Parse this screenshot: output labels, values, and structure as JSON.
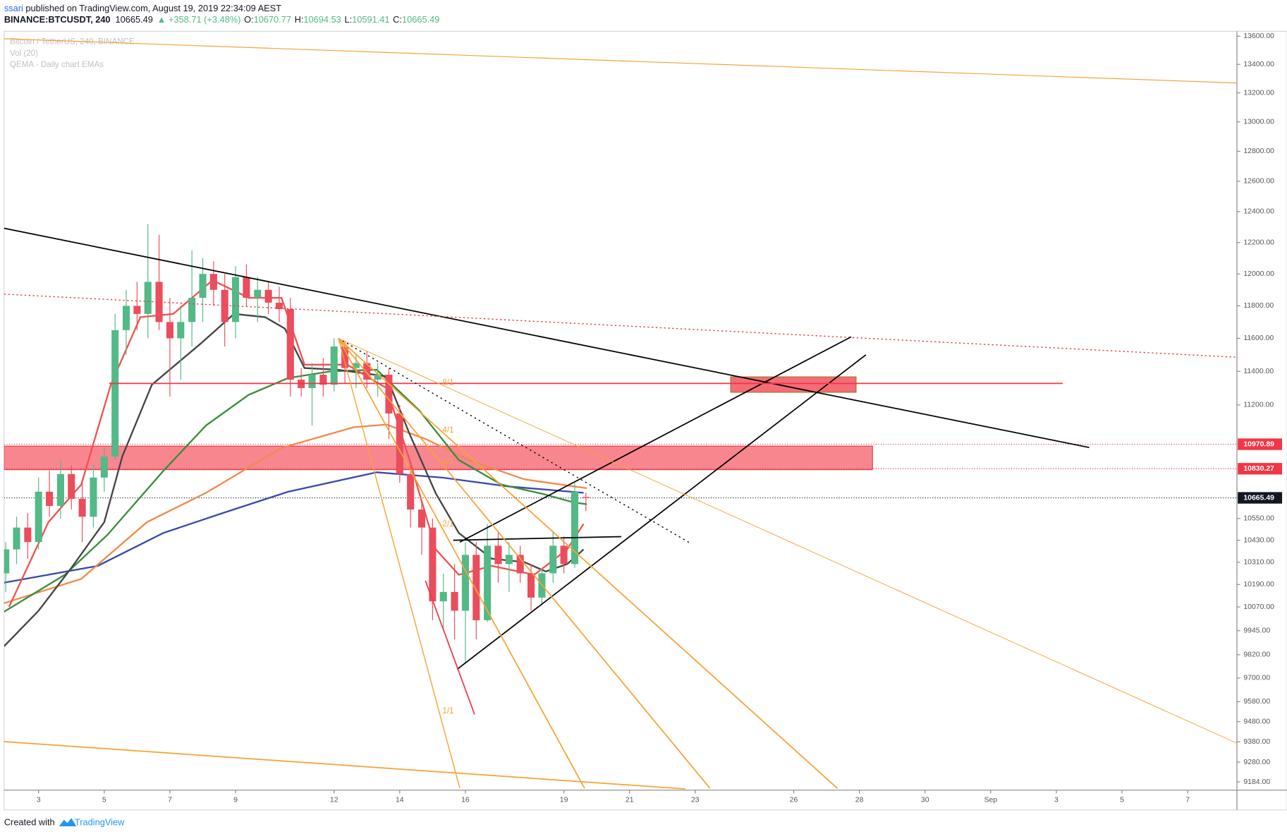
{
  "header": {
    "author": "ssari",
    "published": " published on TradingView.com, August 19, 2019 22:34:09 AEST",
    "symbol": "BINANCE:BTCUSDT, 240",
    "price": "10665.49",
    "change": "▲ +358.71 (+3.48%)",
    "ohlc": [
      {
        "label": "O:",
        "value": "10670.77"
      },
      {
        "label": "H:",
        "value": "10694.53"
      },
      {
        "label": "L:",
        "value": "10591.41"
      },
      {
        "label": "C:",
        "value": "10665.49"
      }
    ]
  },
  "chart_data": {
    "type": "candlestick",
    "log_scale": true,
    "grid": false,
    "studies": [
      "Bitcoin / TetherUS, 240, BINANCE",
      "Vol (20)",
      "QEMA - Daily chart EMAs"
    ],
    "up_color": "#53b987",
    "down_color": "#eb4d5c",
    "xlim": [
      1.95,
      39.5
    ],
    "ylim": [
      9144,
      13635
    ],
    "xticks": [
      3,
      5,
      7,
      9,
      12,
      14,
      16,
      19,
      21,
      23,
      26,
      28,
      30,
      {
        "value": 32,
        "label": "Sep"
      },
      {
        "value": 34,
        "label": "3"
      },
      {
        "value": 36,
        "label": "5"
      },
      {
        "value": 38,
        "label": "7"
      }
    ],
    "yticks": [
      {
        "value": 13600,
        "label": "13600.00"
      },
      {
        "value": 13400,
        "label": "13400.00"
      },
      {
        "value": 13200,
        "label": "13200.00"
      },
      {
        "value": 13000,
        "label": "13000.00"
      },
      {
        "value": 12800,
        "label": "12800.00"
      },
      {
        "value": 12600,
        "label": "12600.00"
      },
      {
        "value": 12400,
        "label": "12400.00"
      },
      {
        "value": 12200,
        "label": "12200.00"
      },
      {
        "value": 12000,
        "label": "12000.00"
      },
      {
        "value": 11800,
        "label": "11800.00"
      },
      {
        "value": 11600,
        "label": "11600.00"
      },
      {
        "value": 11400,
        "label": "11400.00"
      },
      {
        "value": 11200,
        "label": "11200.00"
      },
      {
        "value": 10550,
        "label": "10550.00"
      },
      {
        "value": 10430,
        "label": "10430.00"
      },
      {
        "value": 10310,
        "label": "10310.00"
      },
      {
        "value": 10190,
        "label": "10190.00"
      },
      {
        "value": 10070,
        "label": "10070.00"
      },
      {
        "value": 9945,
        "label": "9945.00"
      },
      {
        "value": 9820,
        "label": "9820.00"
      },
      {
        "value": 9700,
        "label": "9700.00"
      },
      {
        "value": 9580,
        "label": "9580.00"
      },
      {
        "value": 9480,
        "label": "9480.00"
      },
      {
        "value": 9380,
        "label": "9380.00"
      },
      {
        "value": 9280,
        "label": "9280.00"
      },
      {
        "value": 9184,
        "label": "9184.00"
      }
    ],
    "candles": [
      [
        2.0,
        10250,
        10420,
        10150,
        10380
      ],
      [
        2.33,
        10380,
        10560,
        10300,
        10500
      ],
      [
        2.67,
        10500,
        10580,
        10330,
        10420
      ],
      [
        3.0,
        10420,
        10780,
        10380,
        10700
      ],
      [
        3.33,
        10700,
        10820,
        10560,
        10620
      ],
      [
        3.67,
        10620,
        10880,
        10550,
        10800
      ],
      [
        4.0,
        10800,
        10850,
        10600,
        10660
      ],
      [
        4.33,
        10660,
        10760,
        10420,
        10560
      ],
      [
        4.67,
        10560,
        10850,
        10500,
        10780
      ],
      [
        5.0,
        10780,
        10950,
        10700,
        10900
      ],
      [
        5.33,
        10900,
        11750,
        10880,
        11650
      ],
      [
        5.67,
        11650,
        11900,
        11500,
        11800
      ],
      [
        6.0,
        11800,
        11950,
        11650,
        11750
      ],
      [
        6.33,
        11750,
        12320,
        11600,
        11950
      ],
      [
        6.67,
        11950,
        12250,
        11650,
        11700
      ],
      [
        7.0,
        11700,
        11850,
        11250,
        11600
      ],
      [
        7.33,
        11600,
        11800,
        11350,
        11700
      ],
      [
        7.67,
        11700,
        12150,
        11550,
        11850
      ],
      [
        8.0,
        11850,
        12100,
        11700,
        12000
      ],
      [
        8.33,
        12000,
        12080,
        11800,
        11900
      ],
      [
        8.67,
        11900,
        12000,
        11550,
        11700
      ],
      [
        9.0,
        11700,
        12050,
        11600,
        11980
      ],
      [
        9.33,
        11980,
        12060,
        11800,
        11850
      ],
      [
        9.67,
        11850,
        11980,
        11700,
        11900
      ],
      [
        10.0,
        11900,
        11950,
        11750,
        11820
      ],
      [
        10.33,
        11820,
        11920,
        11700,
        11780
      ],
      [
        10.67,
        11780,
        11850,
        11250,
        11350
      ],
      [
        11.0,
        11350,
        11420,
        11250,
        11300
      ],
      [
        11.33,
        11300,
        11450,
        11080,
        11380
      ],
      [
        11.67,
        11380,
        11480,
        11250,
        11320
      ],
      [
        12.0,
        11320,
        11600,
        11280,
        11550
      ],
      [
        12.33,
        11550,
        11580,
        11330,
        11420
      ],
      [
        12.67,
        11420,
        11500,
        11300,
        11450
      ],
      [
        13.0,
        11450,
        11520,
        11300,
        11350
      ],
      [
        13.33,
        11350,
        11450,
        11250,
        11380
      ],
      [
        13.67,
        11380,
        11420,
        11000,
        11150
      ],
      [
        14.0,
        11150,
        11200,
        10750,
        10800
      ],
      [
        14.33,
        10800,
        10850,
        10500,
        10600
      ],
      [
        14.67,
        10600,
        10650,
        10350,
        10500
      ],
      [
        15.0,
        10500,
        10550,
        10000,
        10100
      ],
      [
        15.33,
        10100,
        10250,
        9950,
        10150
      ],
      [
        15.67,
        10150,
        10300,
        9900,
        10050
      ],
      [
        16.0,
        10050,
        10420,
        9780,
        10350
      ],
      [
        16.33,
        10350,
        10420,
        9900,
        10000
      ],
      [
        16.67,
        10000,
        10520,
        9990,
        10400
      ],
      [
        17.0,
        10400,
        10480,
        10200,
        10300
      ],
      [
        17.33,
        10300,
        10420,
        10150,
        10350
      ],
      [
        17.67,
        10350,
        10400,
        10200,
        10250
      ],
      [
        18.0,
        10250,
        10300,
        10050,
        10120
      ],
      [
        18.33,
        10120,
        10280,
        10080,
        10250
      ],
      [
        18.67,
        10250,
        10480,
        10200,
        10400
      ],
      [
        19.0,
        10400,
        10450,
        10250,
        10300
      ],
      [
        19.33,
        10300,
        10750,
        10280,
        10700
      ],
      [
        19.67,
        10670.77,
        10694.53,
        10591.41,
        10665.49
      ]
    ],
    "series": [
      {
        "color": "#3949ab",
        "x": [
          1.95,
          4.8,
          6.8,
          8.6,
          10.6,
          13.3,
          15.3,
          17.3,
          19.6
        ],
        "values": [
          10200,
          10290,
          10470,
          10580,
          10700,
          10810,
          10780,
          10730,
          10694
        ]
      },
      {
        "color": "#f08a4b",
        "x": [
          1.95,
          4.3,
          6.3,
          8.1,
          10.4,
          12.6,
          13.6,
          14.8,
          16.1,
          17.8,
          19.3,
          19.7
        ],
        "values": [
          10090,
          10220,
          10530,
          10694,
          10950,
          11070,
          11085,
          11000,
          10880,
          10770,
          10730,
          10720
        ]
      },
      {
        "color": "#388e3c",
        "x": [
          1.95,
          3.8,
          5.1,
          6.8,
          8.1,
          9.4,
          10.6,
          11.9,
          13.3,
          14.6,
          15.8,
          17.1,
          18.3,
          19.3,
          19.7
        ],
        "values": [
          10045,
          10242,
          10460,
          10818,
          11080,
          11260,
          11360,
          11400,
          11410,
          11167,
          10880,
          10740,
          10690,
          10640,
          10630
        ]
      },
      {
        "color": "#444444",
        "x": [
          1.95,
          3.0,
          4.0,
          5.0,
          5.55,
          6.45,
          7.95,
          8.95,
          9.9,
          10.5,
          11.1,
          12.1,
          13.6,
          14.3,
          15.1,
          15.8,
          16.8,
          17.8,
          18.45,
          19.1,
          19.6
        ],
        "values": [
          9864,
          10050,
          10280,
          10530,
          10900,
          11320,
          11570,
          11750,
          11730,
          11660,
          11420,
          11410,
          11370,
          11030,
          10690,
          10470,
          10330,
          10310,
          10260,
          10300,
          10380
        ]
      },
      {
        "color": "#ef5350",
        "x": [
          2.1,
          3.3,
          4.3,
          5.2,
          6.1,
          7.1,
          8.3,
          9.4,
          10.4,
          11.1,
          12.4,
          13.6,
          14.3,
          15.1,
          15.8,
          16.8,
          18.1,
          19.1,
          19.6
        ],
        "values": [
          10070,
          10530,
          10740,
          11320,
          11730,
          11750,
          11960,
          11850,
          11850,
          11440,
          11440,
          11300,
          10880,
          10380,
          10242,
          10290,
          10242,
          10380,
          10520
        ]
      }
    ],
    "zones": [
      {
        "color": "#f2364599",
        "border": "#f23645",
        "x": [
          1.95,
          28.4
        ],
        "y": [
          10825,
          10960
        ]
      },
      {
        "color": "#f23645bb",
        "border": "#9a7a2a",
        "x": [
          24.08,
          27.9
        ],
        "y": [
          11275,
          11367
        ]
      }
    ],
    "lines": [
      {
        "color": "#000000",
        "width": 1.5,
        "x": [
          1.95,
          35.0
        ],
        "y": [
          12292,
          10952
        ]
      },
      {
        "color": "#f23645",
        "width": 1.2,
        "dash": "2,3",
        "x": [
          1.95,
          39.5
        ],
        "y": [
          11873,
          11485
        ]
      },
      {
        "color": "#f7a234",
        "width": 1,
        "x": [
          1.95,
          39.5
        ],
        "y": [
          13582,
          13269
        ]
      },
      {
        "color": "#000000",
        "width": 1.5,
        "x": [
          15.83,
          27.75
        ],
        "y": [
          10420,
          11609
        ]
      },
      {
        "color": "#000000",
        "width": 1.5,
        "x": [
          15.75,
          28.2
        ],
        "y": [
          9745,
          11500
        ]
      },
      {
        "color": "#000000",
        "width": 1.5,
        "x": [
          15.63,
          20.75
        ],
        "y": [
          10430,
          10450
        ]
      },
      {
        "color": "#f23645",
        "width": 1.5,
        "x": [
          5.15,
          34.2
        ],
        "y": [
          11328,
          11328
        ]
      },
      {
        "color": "#f23645",
        "width": 1.5,
        "x": [
          14.78,
          16.28
        ],
        "y": [
          10211,
          9516
        ]
      },
      {
        "color": "#000000",
        "width": 1.2,
        "dash": "2,4",
        "x": [
          12.13,
          22.88
        ],
        "y": [
          11600,
          10411
        ]
      },
      {
        "color": "#f7a234",
        "width": 1.2,
        "x": [
          12.13,
          15.83
        ],
        "y": [
          11600,
          9153
        ]
      },
      {
        "color": "#f7a234",
        "width": 1.5,
        "x": [
          12.13,
          19.63
        ],
        "y": [
          11600,
          9153
        ]
      },
      {
        "color": "#f7a234",
        "width": 1.5,
        "x": [
          12.13,
          23.45
        ],
        "y": [
          11600,
          9153
        ]
      },
      {
        "color": "#f7a234",
        "width": 1.5,
        "x": [
          12.13,
          27.33
        ],
        "y": [
          11600,
          9153
        ]
      },
      {
        "color": "#f7a234",
        "width": 0.8,
        "x": [
          12.13,
          39.5
        ],
        "y": [
          11600,
          9373
        ]
      },
      {
        "color": "#f7a234",
        "width": 1.5,
        "x": [
          1.95,
          22.7
        ],
        "y": [
          9381,
          9150
        ]
      }
    ],
    "fan_labels": [
      "8/1",
      "4/1",
      "3/1",
      "2/1",
      "1/1"
    ],
    "price_labels": [
      {
        "value": 10970.89,
        "color": "#f23645"
      },
      {
        "value": 10830.27,
        "color": "#f23645"
      },
      {
        "value": 10665.49,
        "color": "#131722"
      }
    ]
  },
  "footer": {
    "created": "Created with",
    "brand": "TradingView"
  }
}
